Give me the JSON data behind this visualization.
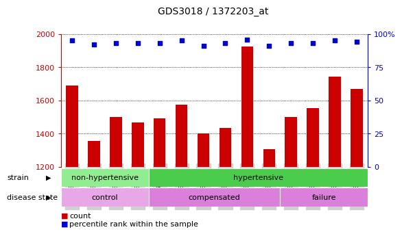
{
  "title": "GDS3018 / 1372203_at",
  "samples": [
    "GSM180079",
    "GSM180082",
    "GSM180085",
    "GSM180089",
    "GSM178755",
    "GSM180057",
    "GSM180059",
    "GSM180061",
    "GSM180062",
    "GSM180065",
    "GSM180068",
    "GSM180069",
    "GSM180073",
    "GSM180075"
  ],
  "counts": [
    1690,
    1355,
    1500,
    1465,
    1490,
    1575,
    1400,
    1435,
    1925,
    1305,
    1500,
    1555,
    1745,
    1670
  ],
  "percentile_ranks": [
    95,
    92,
    93,
    93,
    93,
    95,
    91,
    93,
    96,
    91,
    93,
    93,
    95,
    94
  ],
  "bar_color": "#cc0000",
  "dot_color": "#0000cc",
  "ymin": 1200,
  "ymax": 2000,
  "yticks": [
    1200,
    1400,
    1600,
    1800,
    2000
  ],
  "y2min": 0,
  "y2max": 100,
  "y2ticks": [
    0,
    25,
    50,
    75,
    100
  ],
  "y2tick_labels": [
    "0",
    "25",
    "50",
    "75",
    "100%"
  ],
  "strain_groups": [
    {
      "label": "non-hypertensive",
      "start": 0,
      "end": 4,
      "color": "#90ee90"
    },
    {
      "label": "hypertensive",
      "start": 4,
      "end": 14,
      "color": "#4ccc4c"
    }
  ],
  "disease_groups": [
    {
      "label": "control",
      "start": 0,
      "end": 4,
      "color": "#e8a8e8"
    },
    {
      "label": "compensated",
      "start": 4,
      "end": 10,
      "color": "#da80da"
    },
    {
      "label": "failure",
      "start": 10,
      "end": 14,
      "color": "#da80da"
    }
  ],
  "tick_bg_color": "#d0d0d0",
  "legend_count_label": "count",
  "legend_pct_label": "percentile rank within the sample",
  "strain_label": "strain",
  "disease_label": "disease state"
}
